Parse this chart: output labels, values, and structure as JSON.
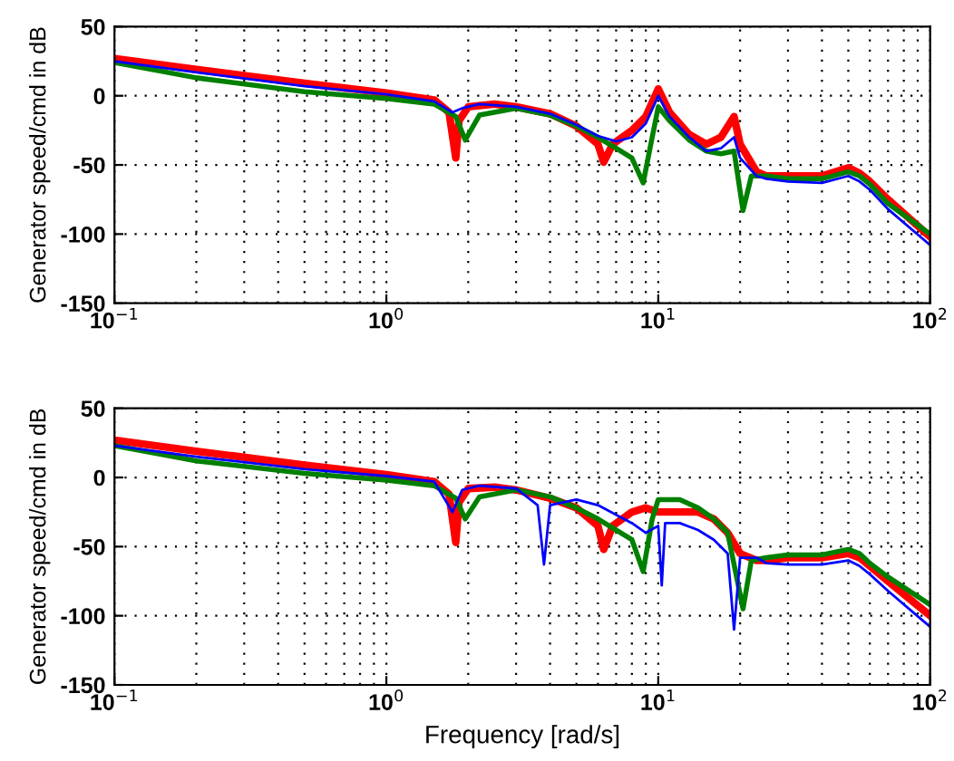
{
  "chart_data": [
    {
      "type": "line",
      "ylabel": "Generator speed/cmd in dB",
      "log": "x",
      "grid": true,
      "line_style": "solid",
      "xlim": [
        0.1,
        100
      ],
      "xticks": [
        {
          "value": 0.1,
          "label": "10$^{−1}$"
        },
        {
          "value": 1,
          "label": "10$^{0}$"
        },
        {
          "value": 10,
          "label": "10$^{1}$"
        },
        {
          "value": 100,
          "label": "10$^{2}$"
        }
      ],
      "ylim": [
        -150,
        50
      ],
      "yticks": [
        -150,
        -100,
        -50,
        0,
        50
      ],
      "series": [
        {
          "color": "#ff0000",
          "x": [
            0.1,
            0.2,
            0.5,
            1,
            1.5,
            1.7,
            1.8,
            1.85,
            2.0,
            2.5,
            3,
            4,
            5,
            6,
            6.3,
            6.8,
            8,
            9,
            10,
            11,
            13,
            15,
            17,
            19,
            20,
            23,
            25,
            30,
            40,
            50,
            55,
            60,
            70,
            100
          ],
          "values": [
            27,
            19,
            9,
            2,
            -3,
            -12,
            -45,
            -18,
            -8,
            -6,
            -8,
            -13,
            -22,
            -35,
            -48,
            -35,
            -25,
            -15,
            5,
            -12,
            -28,
            -35,
            -30,
            -15,
            -35,
            -55,
            -58,
            -58,
            -58,
            -52,
            -56,
            -62,
            -75,
            -102
          ]
        },
        {
          "color": "#008000",
          "x": [
            0.1,
            0.2,
            0.5,
            1,
            1.5,
            1.8,
            1.95,
            2.2,
            3,
            4,
            5,
            6,
            7,
            8,
            8.8,
            9.5,
            10,
            11,
            13,
            15,
            17,
            19,
            20.5,
            22,
            25,
            30,
            40,
            50,
            55,
            60,
            70,
            100
          ],
          "values": [
            24,
            13,
            3,
            -2,
            -6,
            -15,
            -32,
            -14,
            -9,
            -14,
            -22,
            -30,
            -38,
            -45,
            -63,
            -30,
            -8,
            -18,
            -32,
            -40,
            -42,
            -40,
            -83,
            -58,
            -58,
            -60,
            -60,
            -55,
            -58,
            -64,
            -78,
            -100
          ]
        },
        {
          "color": "#0000ff",
          "x": [
            0.1,
            0.2,
            0.5,
            1,
            1.5,
            1.75,
            1.9,
            2.2,
            3,
            4,
            5,
            6,
            7,
            8,
            9,
            10,
            11,
            13,
            15,
            17,
            19,
            20,
            23,
            25,
            30,
            40,
            50,
            55,
            60,
            70,
            100
          ],
          "values": [
            25,
            17,
            7,
            1,
            -4,
            -12,
            -9,
            -6,
            -8,
            -13,
            -21,
            -29,
            -33,
            -30,
            -20,
            0,
            -15,
            -30,
            -40,
            -38,
            -30,
            -45,
            -58,
            -60,
            -62,
            -63,
            -58,
            -62,
            -68,
            -82,
            -108
          ]
        }
      ]
    },
    {
      "type": "line",
      "ylabel": "Generator speed/cmd in dB",
      "xlabel": "Frequency [rad/s]",
      "log": "x",
      "grid": true,
      "line_style": "solid",
      "xlim": [
        0.1,
        100
      ],
      "xticks": [
        {
          "value": 0.1,
          "label": "10$^{−1}$"
        },
        {
          "value": 1,
          "label": "10$^{0}$"
        },
        {
          "value": 10,
          "label": "10$^{1}$"
        },
        {
          "value": 100,
          "label": "10$^{2}$"
        }
      ],
      "ylim": [
        -150,
        50
      ],
      "yticks": [
        -150,
        -100,
        -50,
        0,
        50
      ],
      "series": [
        {
          "color": "#ff0000",
          "x": [
            0.1,
            0.2,
            0.5,
            1,
            1.5,
            1.7,
            1.8,
            1.85,
            2.0,
            2.5,
            3,
            4,
            5,
            6,
            6.3,
            6.8,
            8,
            9,
            10,
            12,
            14,
            16,
            18,
            20,
            23,
            25,
            30,
            40,
            50,
            55,
            60,
            70,
            100
          ],
          "values": [
            27,
            19,
            9,
            2,
            -3,
            -12,
            -47,
            -18,
            -8,
            -7,
            -9,
            -15,
            -22,
            -35,
            -52,
            -35,
            -25,
            -22,
            -25,
            -25,
            -25,
            -30,
            -40,
            -55,
            -60,
            -60,
            -58,
            -58,
            -55,
            -58,
            -64,
            -75,
            -100
          ]
        },
        {
          "color": "#008000",
          "x": [
            0.1,
            0.2,
            0.5,
            1,
            1.5,
            1.8,
            1.95,
            2.2,
            3,
            4,
            5,
            6,
            7,
            8,
            8.8,
            9.5,
            10,
            12,
            14,
            16,
            18,
            20.5,
            22,
            25,
            30,
            40,
            50,
            55,
            60,
            70,
            100
          ],
          "values": [
            23,
            12,
            3,
            -2,
            -6,
            -15,
            -30,
            -14,
            -9,
            -14,
            -22,
            -30,
            -38,
            -45,
            -68,
            -30,
            -16,
            -16,
            -22,
            -30,
            -40,
            -95,
            -60,
            -58,
            -56,
            -56,
            -52,
            -55,
            -62,
            -72,
            -92
          ]
        },
        {
          "color": "#0000ff",
          "x": [
            0.1,
            0.2,
            0.5,
            1,
            1.5,
            1.75,
            1.9,
            2.2,
            3,
            3.6,
            3.8,
            4.0,
            5,
            6,
            7,
            8,
            9,
            10,
            10.3,
            10.6,
            12,
            14,
            16,
            18,
            19,
            20,
            23,
            25,
            30,
            40,
            50,
            55,
            60,
            70,
            100
          ],
          "values": [
            23,
            15,
            6,
            1,
            -3,
            -25,
            -9,
            -6,
            -8,
            -20,
            -63,
            -20,
            -16,
            -20,
            -27,
            -33,
            -40,
            -35,
            -78,
            -33,
            -33,
            -38,
            -45,
            -55,
            -110,
            -58,
            -58,
            -62,
            -63,
            -63,
            -60,
            -64,
            -70,
            -82,
            -108
          ]
        }
      ]
    }
  ]
}
